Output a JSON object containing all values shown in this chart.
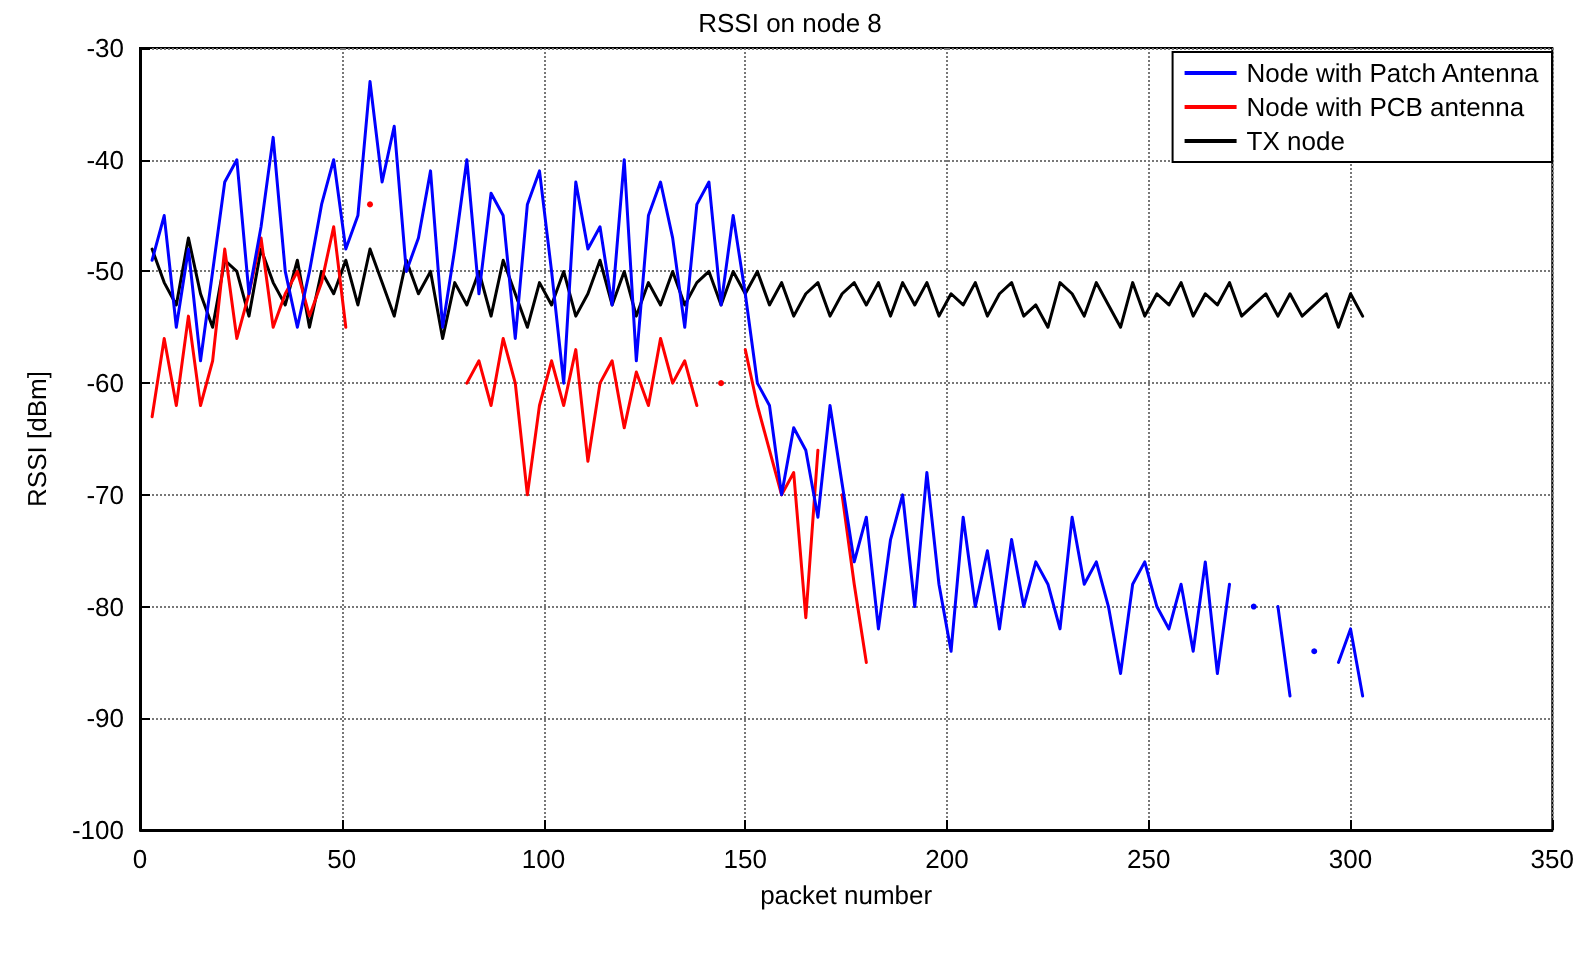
{
  "chart_data": {
    "type": "line",
    "title": "RSSI on node 8",
    "xlabel": "packet number",
    "ylabel": "RSSI [dBm]",
    "xlim": [
      0,
      350
    ],
    "xticks": [
      0,
      50,
      100,
      150,
      200,
      250,
      300,
      350
    ],
    "ylim": [
      -100,
      -30
    ],
    "yticks": [
      -100,
      -90,
      -80,
      -70,
      -60,
      -50,
      -40,
      -30
    ],
    "grid": true,
    "legend": "top right",
    "marker": "none",
    "line_style": "solid",
    "x": [
      3,
      6,
      9,
      12,
      15,
      18,
      21,
      24,
      27,
      30,
      33,
      36,
      39,
      42,
      45,
      48,
      51,
      54,
      57,
      60,
      63,
      66,
      69,
      72,
      75,
      78,
      81,
      84,
      87,
      90,
      93,
      96,
      99,
      102,
      105,
      108,
      111,
      114,
      117,
      120,
      123,
      126,
      129,
      132,
      135,
      138,
      141,
      144,
      147,
      150,
      153,
      156,
      159,
      162,
      165,
      168,
      171,
      174,
      177,
      180,
      183,
      186,
      189,
      192,
      195,
      198,
      201,
      204,
      207,
      210,
      213,
      216,
      219,
      222,
      225,
      228,
      231,
      234,
      237,
      240,
      243,
      246,
      249,
      252,
      255,
      258,
      261,
      264,
      267,
      270,
      273,
      276,
      279,
      282,
      285,
      288,
      291,
      294,
      297,
      300,
      303
    ],
    "series": [
      {
        "name": "Node with Patch Antenna",
        "color": "#0000ff",
        "values": [
          -49,
          -45,
          -55,
          -48,
          -58,
          -50,
          -42,
          -40,
          -52,
          -46,
          -38,
          -50,
          -55,
          -50,
          -44,
          -40,
          -48,
          -45,
          -33,
          -42,
          -37,
          -50,
          -47,
          -41,
          -55,
          -48,
          -40,
          -52,
          -43,
          -45,
          -56,
          -44,
          -41,
          -50,
          -60,
          -42,
          -48,
          -46,
          -53,
          -40,
          -58,
          -45,
          -42,
          -47,
          -55,
          -44,
          -42,
          -53,
          -45,
          -52,
          -60,
          -62,
          -70,
          -64,
          -66,
          -72,
          -62,
          -69,
          -76,
          -72,
          -82,
          -74,
          -70,
          -80,
          -68,
          -78,
          -84,
          -72,
          -80,
          -75,
          -82,
          -74,
          -80,
          -76,
          -78,
          -82,
          -72,
          -78,
          -76,
          -80,
          -86,
          -78,
          -76,
          -80,
          -82,
          -78,
          -84,
          -76,
          -86,
          -78,
          null,
          -80,
          null,
          -80,
          -88,
          null,
          -84,
          null,
          -85,
          -82,
          -88
        ]
      },
      {
        "name": "Node with PCB antenna",
        "color": "#ff0000",
        "x": [
          3,
          6,
          9,
          12,
          15,
          18,
          21,
          24,
          27,
          30,
          33,
          36,
          39,
          42,
          45,
          48,
          51,
          54,
          57,
          60,
          63,
          66,
          69,
          72,
          75,
          78,
          81,
          84,
          87,
          90,
          93,
          96,
          99,
          102,
          105,
          108,
          111,
          114,
          117,
          120,
          123,
          126,
          129,
          132,
          135,
          138,
          141,
          144,
          147,
          150,
          153,
          156,
          159,
          162,
          165,
          168,
          171,
          174,
          177,
          180
        ],
        "values": [
          -63,
          -56,
          -62,
          -54,
          -62,
          -58,
          -48,
          -56,
          -52,
          -47,
          -55,
          -52,
          -50,
          -54,
          -51,
          -46,
          -55,
          null,
          -44,
          null,
          null,
          null,
          null,
          null,
          null,
          null,
          -60,
          -58,
          -62,
          -56,
          -60,
          -70,
          -62,
          -58,
          -62,
          -57,
          -67,
          -60,
          -58,
          -64,
          -59,
          -62,
          -56,
          -60,
          -58,
          -62,
          null,
          -60,
          null,
          -57,
          -62,
          -66,
          -70,
          -68,
          -81,
          -66,
          null,
          -70,
          -78,
          -85
        ]
      },
      {
        "name": "TX node",
        "color": "#000000",
        "values": [
          -48,
          -51,
          -53,
          -47,
          -52,
          -55,
          -49,
          -50,
          -54,
          -48,
          -51,
          -53,
          -49,
          -55,
          -50,
          -52,
          -49,
          -53,
          -48,
          -51,
          -54,
          -49,
          -52,
          -50,
          -56,
          -51,
          -53,
          -50,
          -54,
          -49,
          -52,
          -55,
          -51,
          -53,
          -50,
          -54,
          -52,
          -49,
          -53,
          -50,
          -54,
          -51,
          -53,
          -50,
          -53,
          -51,
          -50,
          -53,
          -50,
          -52,
          -50,
          -53,
          -51,
          -54,
          -52,
          -51,
          -54,
          -52,
          -51,
          -53,
          -51,
          -54,
          -51,
          -53,
          -51,
          -54,
          -52,
          -53,
          -51,
          -54,
          -52,
          -51,
          -54,
          -53,
          -55,
          -51,
          -52,
          -54,
          -51,
          -53,
          -55,
          -51,
          -54,
          -52,
          -53,
          -51,
          -54,
          -52,
          -53,
          -51,
          -54,
          -53,
          -52,
          -54,
          -52,
          -54,
          -53,
          -52,
          -55,
          -52,
          -54
        ]
      }
    ]
  }
}
